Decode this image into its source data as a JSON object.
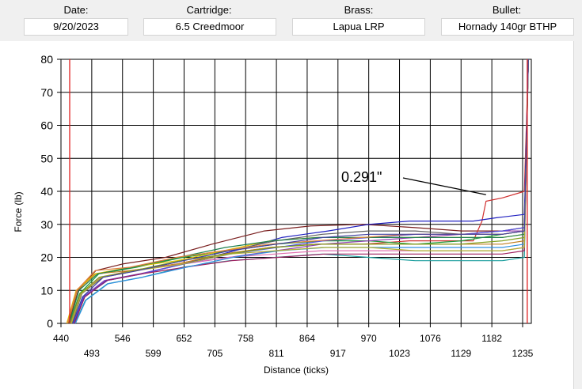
{
  "header": {
    "date": {
      "label": "Date:",
      "value": "9/20/2023"
    },
    "cartridge": {
      "label": "Cartridge:",
      "value": "6.5 Creedmoor"
    },
    "brass": {
      "label": "Brass:",
      "value": "Lapua LRP"
    },
    "bullet": {
      "label": "Bullet:",
      "value": "Hornady 140gr BTHP"
    }
  },
  "chart_data": {
    "type": "line",
    "xlabel": "Distance (ticks)",
    "ylabel": "Force (lb)",
    "xlim": [
      440,
      1250
    ],
    "ylim": [
      0,
      80
    ],
    "x_ticks": [
      440,
      493,
      546,
      599,
      652,
      705,
      758,
      811,
      864,
      917,
      970,
      1023,
      1076,
      1129,
      1182,
      1235
    ],
    "y_ticks": [
      0,
      10,
      20,
      30,
      40,
      50,
      60,
      70,
      80
    ],
    "grid": true,
    "markers": [
      455,
      1243
    ],
    "marker_color": "#e02020",
    "annotation": {
      "text": "0.291\"",
      "point_x": 1172,
      "point_y": 39
    },
    "series": [
      {
        "color": "#7a1f1f",
        "values": [
          [
            453,
            0
          ],
          [
            470,
            10
          ],
          [
            500,
            16
          ],
          [
            546,
            18
          ],
          [
            620,
            20
          ],
          [
            700,
            24
          ],
          [
            790,
            28
          ],
          [
            870,
            29.5
          ],
          [
            960,
            30
          ],
          [
            1050,
            29
          ],
          [
            1130,
            28
          ],
          [
            1200,
            28
          ],
          [
            1238,
            29
          ],
          [
            1245,
            80
          ]
        ]
      },
      {
        "color": "#d03030",
        "values": [
          [
            458,
            0
          ],
          [
            475,
            9
          ],
          [
            510,
            14
          ],
          [
            560,
            16
          ],
          [
            640,
            18
          ],
          [
            720,
            21
          ],
          [
            800,
            23
          ],
          [
            880,
            24
          ],
          [
            960,
            24
          ],
          [
            1040,
            25
          ],
          [
            1100,
            25
          ],
          [
            1150,
            25
          ],
          [
            1165,
            31
          ],
          [
            1172,
            37
          ],
          [
            1200,
            38
          ],
          [
            1238,
            40
          ],
          [
            1245,
            80
          ]
        ]
      },
      {
        "color": "#2020c0",
        "values": [
          [
            462,
            0
          ],
          [
            480,
            8
          ],
          [
            520,
            13
          ],
          [
            580,
            15
          ],
          [
            650,
            18
          ],
          [
            740,
            22
          ],
          [
            820,
            26
          ],
          [
            900,
            28
          ],
          [
            970,
            30
          ],
          [
            1040,
            31
          ],
          [
            1100,
            31
          ],
          [
            1150,
            31
          ],
          [
            1190,
            32
          ],
          [
            1238,
            33
          ],
          [
            1245,
            80
          ]
        ]
      },
      {
        "color": "#1a9a3a",
        "values": [
          [
            455,
            0
          ],
          [
            472,
            9
          ],
          [
            505,
            15
          ],
          [
            570,
            17
          ],
          [
            650,
            20
          ],
          [
            730,
            22
          ],
          [
            810,
            24
          ],
          [
            890,
            25
          ],
          [
            970,
            25
          ],
          [
            1050,
            24
          ],
          [
            1130,
            25
          ],
          [
            1200,
            27
          ],
          [
            1238,
            28
          ],
          [
            1245,
            80
          ]
        ]
      },
      {
        "color": "#9040b0",
        "values": [
          [
            460,
            0
          ],
          [
            478,
            8
          ],
          [
            515,
            13
          ],
          [
            575,
            15
          ],
          [
            650,
            18
          ],
          [
            730,
            20
          ],
          [
            810,
            22
          ],
          [
            890,
            24
          ],
          [
            970,
            25
          ],
          [
            1050,
            26
          ],
          [
            1130,
            27
          ],
          [
            1200,
            28
          ],
          [
            1238,
            28
          ],
          [
            1245,
            80
          ]
        ]
      },
      {
        "color": "#c08020",
        "values": [
          [
            452,
            0
          ],
          [
            468,
            10
          ],
          [
            500,
            15
          ],
          [
            560,
            16
          ],
          [
            640,
            18
          ],
          [
            720,
            21
          ],
          [
            800,
            23
          ],
          [
            880,
            24
          ],
          [
            960,
            24
          ],
          [
            1040,
            24
          ],
          [
            1120,
            24
          ],
          [
            1200,
            24
          ],
          [
            1238,
            25
          ],
          [
            1245,
            80
          ]
        ]
      },
      {
        "color": "#20a0a0",
        "values": [
          [
            464,
            0
          ],
          [
            482,
            7
          ],
          [
            520,
            12
          ],
          [
            580,
            14
          ],
          [
            650,
            17
          ],
          [
            730,
            19
          ],
          [
            810,
            20
          ],
          [
            890,
            21
          ],
          [
            970,
            20
          ],
          [
            1050,
            19
          ],
          [
            1130,
            19
          ],
          [
            1200,
            19
          ],
          [
            1238,
            20
          ],
          [
            1245,
            80
          ]
        ]
      },
      {
        "color": "#e0c000",
        "values": [
          [
            450,
            0
          ],
          [
            466,
            10
          ],
          [
            498,
            15
          ],
          [
            560,
            17
          ],
          [
            640,
            19
          ],
          [
            720,
            22
          ],
          [
            800,
            25
          ],
          [
            880,
            26
          ],
          [
            960,
            26
          ],
          [
            1040,
            26
          ],
          [
            1120,
            26
          ],
          [
            1200,
            26
          ],
          [
            1238,
            27
          ],
          [
            1245,
            80
          ]
        ]
      },
      {
        "color": "#606060",
        "values": [
          [
            459,
            0
          ],
          [
            476,
            9
          ],
          [
            512,
            14
          ],
          [
            572,
            16
          ],
          [
            650,
            19
          ],
          [
            730,
            22
          ],
          [
            810,
            25
          ],
          [
            890,
            27
          ],
          [
            970,
            28
          ],
          [
            1050,
            28
          ],
          [
            1130,
            27
          ],
          [
            1200,
            27
          ],
          [
            1238,
            28
          ],
          [
            1245,
            80
          ]
        ]
      },
      {
        "color": "#e070b0",
        "values": [
          [
            457,
            0
          ],
          [
            474,
            9
          ],
          [
            508,
            14
          ],
          [
            568,
            16
          ],
          [
            648,
            18
          ],
          [
            728,
            20
          ],
          [
            808,
            21
          ],
          [
            888,
            22
          ],
          [
            968,
            22
          ],
          [
            1048,
            22
          ],
          [
            1128,
            22
          ],
          [
            1200,
            22
          ],
          [
            1238,
            23
          ],
          [
            1245,
            80
          ]
        ]
      },
      {
        "color": "#5050e0",
        "values": [
          [
            461,
            0
          ],
          [
            479,
            8
          ],
          [
            517,
            13
          ],
          [
            577,
            15
          ],
          [
            652,
            18
          ],
          [
            732,
            21
          ],
          [
            812,
            23
          ],
          [
            892,
            25
          ],
          [
            972,
            26
          ],
          [
            1052,
            27
          ],
          [
            1132,
            27
          ],
          [
            1200,
            28
          ],
          [
            1238,
            29
          ],
          [
            1245,
            80
          ]
        ]
      },
      {
        "color": "#80a020",
        "values": [
          [
            456,
            0
          ],
          [
            473,
            9
          ],
          [
            506,
            14
          ],
          [
            566,
            16
          ],
          [
            646,
            19
          ],
          [
            726,
            21
          ],
          [
            806,
            23
          ],
          [
            886,
            24
          ],
          [
            966,
            24
          ],
          [
            1046,
            24
          ],
          [
            1126,
            24
          ],
          [
            1200,
            25
          ],
          [
            1238,
            26
          ],
          [
            1245,
            80
          ]
        ]
      },
      {
        "color": "#a02060",
        "values": [
          [
            463,
            0
          ],
          [
            481,
            8
          ],
          [
            519,
            13
          ],
          [
            579,
            15
          ],
          [
            654,
            17
          ],
          [
            734,
            19
          ],
          [
            814,
            20
          ],
          [
            894,
            21
          ],
          [
            974,
            21
          ],
          [
            1054,
            21
          ],
          [
            1134,
            21
          ],
          [
            1200,
            21
          ],
          [
            1238,
            22
          ],
          [
            1245,
            80
          ]
        ]
      },
      {
        "color": "#208050",
        "values": [
          [
            454,
            0
          ],
          [
            471,
            10
          ],
          [
            503,
            15
          ],
          [
            563,
            17
          ],
          [
            643,
            20
          ],
          [
            723,
            23
          ],
          [
            803,
            25
          ],
          [
            883,
            26
          ],
          [
            963,
            26
          ],
          [
            1043,
            26
          ],
          [
            1123,
            26
          ],
          [
            1200,
            26
          ],
          [
            1238,
            27
          ],
          [
            1245,
            80
          ]
        ]
      },
      {
        "color": "#e08040",
        "values": [
          [
            451,
            0
          ],
          [
            467,
            10
          ],
          [
            499,
            16
          ],
          [
            559,
            17
          ],
          [
            639,
            20
          ],
          [
            719,
            22
          ],
          [
            799,
            24
          ],
          [
            879,
            25
          ],
          [
            959,
            26
          ],
          [
            1039,
            27
          ],
          [
            1119,
            27
          ],
          [
            1200,
            27
          ],
          [
            1238,
            28
          ],
          [
            1245,
            80
          ]
        ]
      },
      {
        "color": "#3090e0",
        "values": [
          [
            465,
            0
          ],
          [
            483,
            7
          ],
          [
            521,
            12
          ],
          [
            581,
            14
          ],
          [
            656,
            17
          ],
          [
            736,
            20
          ],
          [
            816,
            22
          ],
          [
            896,
            23
          ],
          [
            976,
            23
          ],
          [
            1056,
            23
          ],
          [
            1136,
            23
          ],
          [
            1200,
            23
          ],
          [
            1238,
            24
          ],
          [
            1245,
            80
          ]
        ]
      },
      {
        "color": "#b0b030",
        "values": [
          [
            458,
            0
          ],
          [
            475,
            9
          ],
          [
            510,
            14
          ],
          [
            570,
            16
          ],
          [
            650,
            18
          ],
          [
            730,
            21
          ],
          [
            810,
            22
          ],
          [
            890,
            23
          ],
          [
            970,
            23
          ],
          [
            1050,
            22
          ],
          [
            1130,
            22
          ],
          [
            1200,
            22
          ],
          [
            1238,
            23
          ],
          [
            1245,
            80
          ]
        ]
      },
      {
        "color": "#4040a0",
        "values": [
          [
            460,
            0
          ],
          [
            477,
            8
          ],
          [
            513,
            14
          ],
          [
            573,
            16
          ],
          [
            651,
            19
          ],
          [
            731,
            22
          ],
          [
            811,
            24
          ],
          [
            891,
            26
          ],
          [
            971,
            27
          ],
          [
            1051,
            27
          ],
          [
            1131,
            27
          ],
          [
            1200,
            27
          ],
          [
            1238,
            28
          ],
          [
            1245,
            80
          ]
        ]
      }
    ]
  }
}
